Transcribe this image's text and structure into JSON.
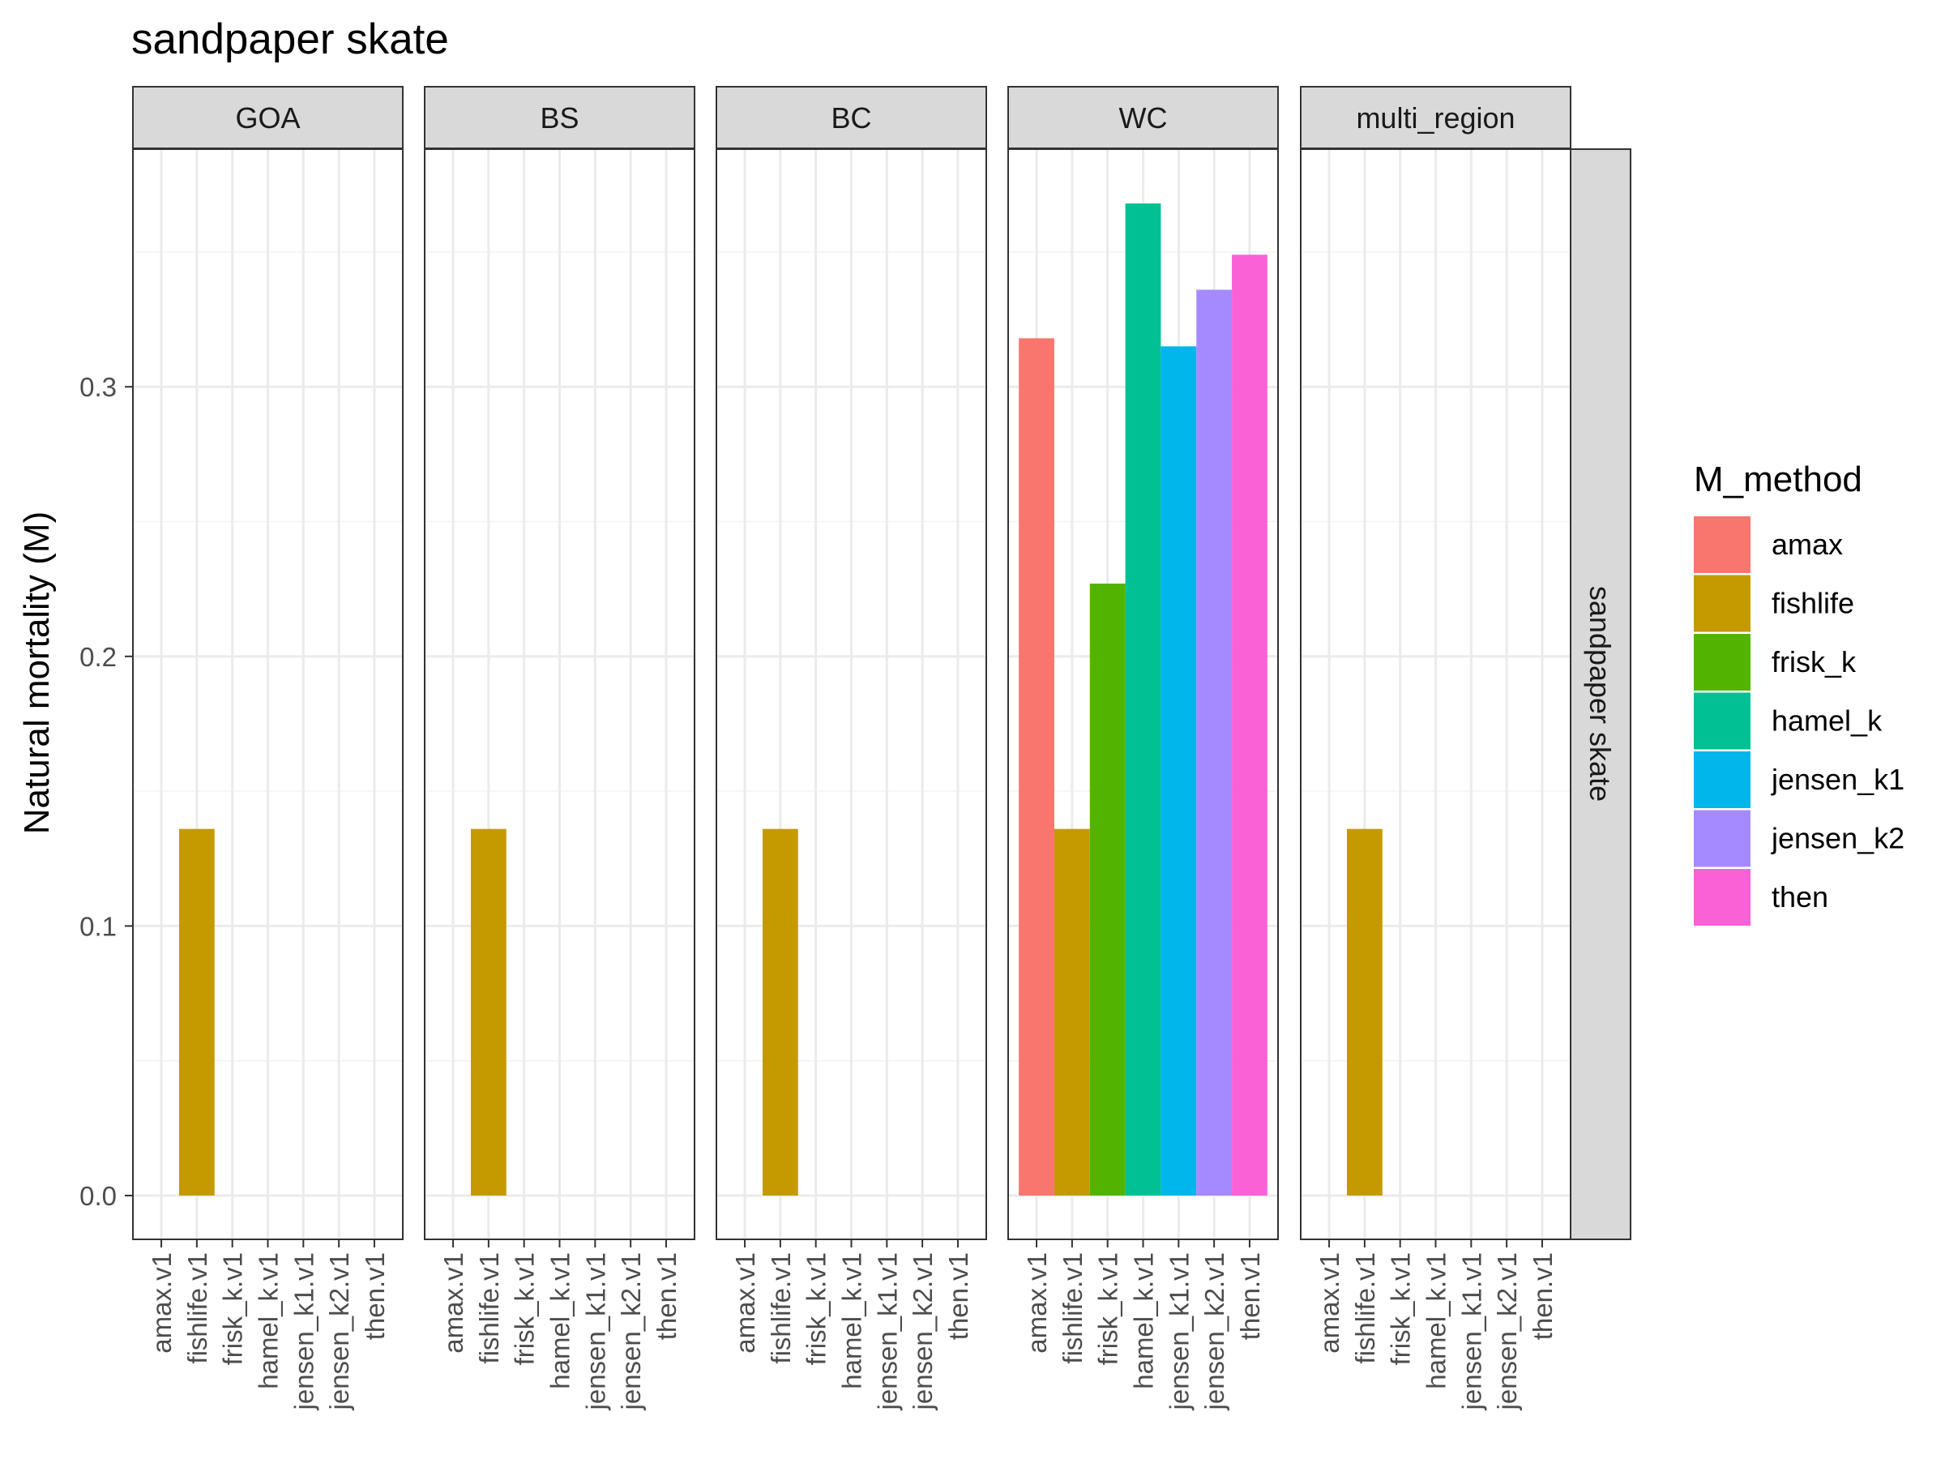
{
  "chart_data": {
    "type": "bar",
    "title": "sandpaper skate",
    "ylabel": "Natural mortality (M)",
    "xlabel": "",
    "ylim": [
      -0.016,
      0.387
    ],
    "yticks": [
      "0.0",
      "0.1",
      "0.2",
      "0.3"
    ],
    "ytick_values": [
      0.0,
      0.1,
      0.2,
      0.3
    ],
    "grid": true,
    "categories": [
      "amax.v1",
      "fishlife.v1",
      "frisk_k.v1",
      "hamel_k.v1",
      "jensen_k1.v1",
      "jensen_k2.v1",
      "then.v1"
    ],
    "facets": [
      "GOA",
      "BS",
      "BC",
      "WC",
      "multi_region"
    ],
    "row_strip": "sandpaper skate",
    "legend": {
      "title": "M_method",
      "position": "right",
      "entries": [
        {
          "label": "amax",
          "color": "#F8766D"
        },
        {
          "label": "fishlife",
          "color": "#C49A00"
        },
        {
          "label": "frisk_k",
          "color": "#53B400"
        },
        {
          "label": "hamel_k",
          "color": "#00C094"
        },
        {
          "label": "jensen_k1",
          "color": "#00B6EB"
        },
        {
          "label": "jensen_k2",
          "color": "#A58AFF"
        },
        {
          "label": "then",
          "color": "#FB61D7"
        }
      ]
    },
    "series": [
      {
        "facet": "GOA",
        "values": [
          null,
          0.136,
          null,
          null,
          null,
          null,
          null
        ]
      },
      {
        "facet": "BS",
        "values": [
          null,
          0.136,
          null,
          null,
          null,
          null,
          null
        ]
      },
      {
        "facet": "BC",
        "values": [
          null,
          0.136,
          null,
          null,
          null,
          null,
          null
        ]
      },
      {
        "facet": "WC",
        "values": [
          0.318,
          0.136,
          0.227,
          0.368,
          0.315,
          0.336,
          0.349
        ]
      },
      {
        "facet": "multi_region",
        "values": [
          null,
          0.136,
          null,
          null,
          null,
          null,
          null
        ]
      }
    ]
  }
}
